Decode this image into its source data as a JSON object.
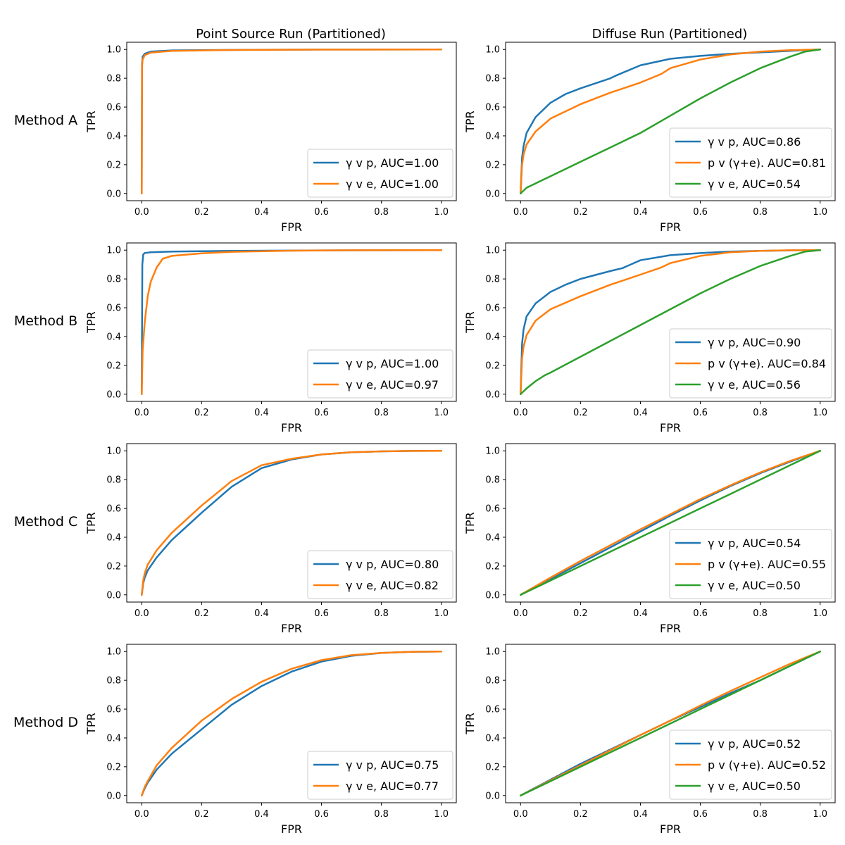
{
  "figure": {
    "column_titles": [
      "Point Source Run (Partitioned)",
      "Diffuse Run (Partitioned)"
    ],
    "row_labels": [
      "Method A",
      "Method B",
      "Method C",
      "Method D"
    ],
    "colors": {
      "blue": "#1f77b4",
      "orange": "#ff7f0e",
      "green": "#2ca02c"
    }
  },
  "chart_data": [
    {
      "type": "line",
      "row": 0,
      "col": 0,
      "xlabel": "FPR",
      "ylabel": "TPR",
      "xlim": [
        0,
        1
      ],
      "ylim": [
        0,
        1
      ],
      "xticks": [
        "0.0",
        "0.2",
        "0.4",
        "0.6",
        "0.8",
        "1.0"
      ],
      "yticks": [
        "0.0",
        "0.2",
        "0.4",
        "0.6",
        "0.8",
        "1.0"
      ],
      "legend": "lower-right",
      "series": [
        {
          "name": "γ v p, AUC=1.00",
          "color": "blue",
          "x": [
            0,
            0.001,
            0.003,
            0.01,
            0.03,
            0.1,
            0.3,
            0.6,
            1.0
          ],
          "y": [
            0,
            0.9,
            0.95,
            0.97,
            0.985,
            0.993,
            0.997,
            0.999,
            1.0
          ]
        },
        {
          "name": "γ v e, AUC=1.00",
          "color": "orange",
          "x": [
            0,
            0.001,
            0.003,
            0.01,
            0.03,
            0.1,
            0.3,
            0.6,
            1.0
          ],
          "y": [
            0,
            0.88,
            0.93,
            0.96,
            0.978,
            0.99,
            0.996,
            0.999,
            1.0
          ]
        }
      ]
    },
    {
      "type": "line",
      "row": 0,
      "col": 1,
      "xlabel": "FPR",
      "ylabel": "TPR",
      "xlim": [
        0,
        1
      ],
      "ylim": [
        0,
        1
      ],
      "xticks": [
        "0.0",
        "0.2",
        "0.4",
        "0.6",
        "0.8",
        "1.0"
      ],
      "yticks": [
        "0.0",
        "0.2",
        "0.4",
        "0.6",
        "0.8",
        "1.0"
      ],
      "legend": "lower-right",
      "series": [
        {
          "name": "γ v p, AUC=0.86",
          "color": "blue",
          "x": [
            0,
            0.005,
            0.01,
            0.02,
            0.05,
            0.1,
            0.15,
            0.2,
            0.3,
            0.32,
            0.4,
            0.5,
            0.6,
            0.7,
            0.8,
            0.9,
            1.0
          ],
          "y": [
            0,
            0.25,
            0.33,
            0.42,
            0.53,
            0.63,
            0.69,
            0.73,
            0.8,
            0.82,
            0.89,
            0.935,
            0.955,
            0.97,
            0.98,
            0.99,
            1.0
          ]
        },
        {
          "name": "p v (γ+e). AUC=0.81",
          "color": "orange",
          "x": [
            0,
            0.005,
            0.01,
            0.02,
            0.05,
            0.1,
            0.2,
            0.3,
            0.4,
            0.47,
            0.5,
            0.6,
            0.7,
            0.8,
            0.9,
            1.0
          ],
          "y": [
            0,
            0.2,
            0.27,
            0.34,
            0.43,
            0.52,
            0.62,
            0.7,
            0.77,
            0.83,
            0.87,
            0.93,
            0.965,
            0.985,
            0.995,
            1.0
          ]
        },
        {
          "name": "γ v e, AUC=0.54",
          "color": "green",
          "x": [
            0,
            0.02,
            0.05,
            0.1,
            0.2,
            0.3,
            0.4,
            0.5,
            0.6,
            0.7,
            0.8,
            0.9,
            0.95,
            1.0
          ],
          "y": [
            0,
            0.04,
            0.07,
            0.12,
            0.22,
            0.32,
            0.42,
            0.54,
            0.66,
            0.77,
            0.87,
            0.95,
            0.985,
            1.0
          ]
        }
      ]
    },
    {
      "type": "line",
      "row": 1,
      "col": 0,
      "xlabel": "FPR",
      "ylabel": "TPR",
      "xlim": [
        0,
        1
      ],
      "ylim": [
        0,
        1
      ],
      "xticks": [
        "0.0",
        "0.2",
        "0.4",
        "0.6",
        "0.8",
        "1.0"
      ],
      "yticks": [
        "0.0",
        "0.2",
        "0.4",
        "0.6",
        "0.8",
        "1.0"
      ],
      "legend": "lower-right",
      "series": [
        {
          "name": "γ v p, AUC=1.00",
          "color": "blue",
          "x": [
            0,
            0.002,
            0.005,
            0.01,
            0.03,
            0.1,
            0.3,
            0.6,
            1.0
          ],
          "y": [
            0,
            0.9,
            0.97,
            0.98,
            0.985,
            0.99,
            0.995,
            0.998,
            1.0
          ]
        },
        {
          "name": "γ v e, AUC=0.97",
          "color": "orange",
          "x": [
            0,
            0.003,
            0.01,
            0.02,
            0.03,
            0.05,
            0.07,
            0.1,
            0.2,
            0.3,
            0.5,
            0.7,
            1.0
          ],
          "y": [
            0,
            0.3,
            0.5,
            0.68,
            0.78,
            0.88,
            0.94,
            0.96,
            0.978,
            0.988,
            0.996,
            0.999,
            1.0
          ]
        }
      ]
    },
    {
      "type": "line",
      "row": 1,
      "col": 1,
      "xlabel": "FPR",
      "ylabel": "TPR",
      "xlim": [
        0,
        1
      ],
      "ylim": [
        0,
        1
      ],
      "xticks": [
        "0.0",
        "0.2",
        "0.4",
        "0.6",
        "0.8",
        "1.0"
      ],
      "yticks": [
        "0.0",
        "0.2",
        "0.4",
        "0.6",
        "0.8",
        "1.0"
      ],
      "legend": "lower-right",
      "series": [
        {
          "name": "γ v p, AUC=0.90",
          "color": "blue",
          "x": [
            0,
            0.005,
            0.01,
            0.02,
            0.05,
            0.1,
            0.15,
            0.2,
            0.3,
            0.34,
            0.4,
            0.5,
            0.6,
            0.7,
            0.8,
            0.9,
            1.0
          ],
          "y": [
            0,
            0.35,
            0.45,
            0.54,
            0.63,
            0.71,
            0.76,
            0.8,
            0.855,
            0.875,
            0.93,
            0.965,
            0.98,
            0.99,
            0.995,
            0.998,
            1.0
          ]
        },
        {
          "name": "p v (γ+e). AUC=0.84",
          "color": "orange",
          "x": [
            0,
            0.005,
            0.01,
            0.02,
            0.05,
            0.1,
            0.2,
            0.3,
            0.4,
            0.47,
            0.5,
            0.6,
            0.7,
            0.8,
            0.9,
            1.0
          ],
          "y": [
            0,
            0.25,
            0.33,
            0.41,
            0.51,
            0.59,
            0.68,
            0.76,
            0.83,
            0.88,
            0.91,
            0.96,
            0.985,
            0.995,
            0.999,
            1.0
          ]
        },
        {
          "name": "γ v e, AUC=0.56",
          "color": "green",
          "x": [
            0,
            0.02,
            0.05,
            0.08,
            0.1,
            0.2,
            0.3,
            0.4,
            0.5,
            0.6,
            0.7,
            0.8,
            0.9,
            0.95,
            1.0
          ],
          "y": [
            0,
            0.04,
            0.09,
            0.13,
            0.15,
            0.26,
            0.37,
            0.48,
            0.59,
            0.7,
            0.8,
            0.89,
            0.96,
            0.99,
            1.0
          ]
        }
      ]
    },
    {
      "type": "line",
      "row": 2,
      "col": 0,
      "xlabel": "FPR",
      "ylabel": "TPR",
      "xlim": [
        0,
        1
      ],
      "ylim": [
        0,
        1
      ],
      "xticks": [
        "0.0",
        "0.2",
        "0.4",
        "0.6",
        "0.8",
        "1.0"
      ],
      "yticks": [
        "0.0",
        "0.2",
        "0.4",
        "0.6",
        "0.8",
        "1.0"
      ],
      "legend": "lower-right",
      "series": [
        {
          "name": "γ v p, AUC=0.80",
          "color": "blue",
          "x": [
            0,
            0.005,
            0.01,
            0.02,
            0.05,
            0.1,
            0.2,
            0.3,
            0.4,
            0.5,
            0.6,
            0.7,
            0.8,
            0.9,
            1.0
          ],
          "y": [
            0,
            0.08,
            0.12,
            0.17,
            0.26,
            0.38,
            0.57,
            0.75,
            0.88,
            0.94,
            0.975,
            0.99,
            0.996,
            0.999,
            1.0
          ]
        },
        {
          "name": "γ v e, AUC=0.82",
          "color": "orange",
          "x": [
            0,
            0.005,
            0.01,
            0.02,
            0.05,
            0.1,
            0.2,
            0.3,
            0.4,
            0.5,
            0.6,
            0.7,
            0.8,
            0.9,
            1.0
          ],
          "y": [
            0,
            0.1,
            0.15,
            0.21,
            0.31,
            0.43,
            0.62,
            0.79,
            0.9,
            0.945,
            0.975,
            0.99,
            0.996,
            0.999,
            1.0
          ]
        }
      ]
    },
    {
      "type": "line",
      "row": 2,
      "col": 1,
      "xlabel": "FPR",
      "ylabel": "TPR",
      "xlim": [
        0,
        1
      ],
      "ylim": [
        0,
        1
      ],
      "xticks": [
        "0.0",
        "0.2",
        "0.4",
        "0.6",
        "0.8",
        "1.0"
      ],
      "yticks": [
        "0.0",
        "0.2",
        "0.4",
        "0.6",
        "0.8",
        "1.0"
      ],
      "legend": "lower-right",
      "series": [
        {
          "name": "γ v p, AUC=0.54",
          "color": "blue",
          "x": [
            0,
            0.1,
            0.2,
            0.3,
            0.4,
            0.5,
            0.6,
            0.7,
            0.8,
            0.9,
            1.0
          ],
          "y": [
            0,
            0.11,
            0.22,
            0.33,
            0.44,
            0.55,
            0.655,
            0.755,
            0.845,
            0.925,
            1.0
          ]
        },
        {
          "name": "p v (γ+e). AUC=0.55",
          "color": "orange",
          "x": [
            0,
            0.1,
            0.2,
            0.3,
            0.4,
            0.5,
            0.6,
            0.7,
            0.8,
            0.9,
            1.0
          ],
          "y": [
            0,
            0.12,
            0.235,
            0.345,
            0.455,
            0.56,
            0.665,
            0.76,
            0.85,
            0.93,
            1.0
          ]
        },
        {
          "name": "γ v e, AUC=0.50",
          "color": "green",
          "x": [
            0,
            0.1,
            0.2,
            0.3,
            0.4,
            0.5,
            0.6,
            0.7,
            0.8,
            0.9,
            1.0
          ],
          "y": [
            0,
            0.1,
            0.2,
            0.3,
            0.4,
            0.5,
            0.6,
            0.7,
            0.8,
            0.9,
            1.0
          ]
        }
      ]
    },
    {
      "type": "line",
      "row": 3,
      "col": 0,
      "xlabel": "FPR",
      "ylabel": "TPR",
      "xlim": [
        0,
        1
      ],
      "ylim": [
        0,
        1
      ],
      "xticks": [
        "0.0",
        "0.2",
        "0.4",
        "0.6",
        "0.8",
        "1.0"
      ],
      "yticks": [
        "0.0",
        "0.2",
        "0.4",
        "0.6",
        "0.8",
        "1.0"
      ],
      "legend": "lower-right",
      "series": [
        {
          "name": "γ v p, AUC=0.75",
          "color": "blue",
          "x": [
            0,
            0.01,
            0.02,
            0.05,
            0.1,
            0.2,
            0.3,
            0.4,
            0.5,
            0.6,
            0.7,
            0.8,
            0.9,
            1.0
          ],
          "y": [
            0,
            0.05,
            0.09,
            0.18,
            0.29,
            0.46,
            0.63,
            0.76,
            0.86,
            0.93,
            0.97,
            0.99,
            0.998,
            1.0
          ]
        },
        {
          "name": "γ v e, AUC=0.77",
          "color": "orange",
          "x": [
            0,
            0.01,
            0.02,
            0.05,
            0.1,
            0.2,
            0.3,
            0.4,
            0.5,
            0.6,
            0.7,
            0.8,
            0.9,
            1.0
          ],
          "y": [
            0,
            0.06,
            0.1,
            0.21,
            0.33,
            0.52,
            0.67,
            0.79,
            0.88,
            0.94,
            0.975,
            0.99,
            0.998,
            1.0
          ]
        }
      ]
    },
    {
      "type": "line",
      "row": 3,
      "col": 1,
      "xlabel": "FPR",
      "ylabel": "TPR",
      "xlim": [
        0,
        1
      ],
      "ylim": [
        0,
        1
      ],
      "xticks": [
        "0.0",
        "0.2",
        "0.4",
        "0.6",
        "0.8",
        "1.0"
      ],
      "yticks": [
        "0.0",
        "0.2",
        "0.4",
        "0.6",
        "0.8",
        "1.0"
      ],
      "legend": "lower-right",
      "series": [
        {
          "name": "γ v p, AUC=0.52",
          "color": "blue",
          "x": [
            0,
            0.1,
            0.2,
            0.3,
            0.4,
            0.5,
            0.6,
            0.7,
            0.8,
            0.9,
            1.0
          ],
          "y": [
            0,
            0.11,
            0.22,
            0.32,
            0.42,
            0.52,
            0.615,
            0.71,
            0.8,
            0.9,
            1.0
          ]
        },
        {
          "name": "p v (γ+e). AUC=0.52",
          "color": "orange",
          "x": [
            0,
            0.1,
            0.2,
            0.3,
            0.4,
            0.5,
            0.6,
            0.7,
            0.8,
            0.9,
            1.0
          ],
          "y": [
            0,
            0.105,
            0.21,
            0.315,
            0.42,
            0.52,
            0.625,
            0.725,
            0.82,
            0.915,
            1.0
          ]
        },
        {
          "name": "γ v e, AUC=0.50",
          "color": "green",
          "x": [
            0,
            0.1,
            0.2,
            0.3,
            0.4,
            0.5,
            0.6,
            0.7,
            0.8,
            0.9,
            1.0
          ],
          "y": [
            0,
            0.1,
            0.2,
            0.3,
            0.4,
            0.5,
            0.6,
            0.7,
            0.8,
            0.9,
            1.0
          ]
        }
      ]
    }
  ]
}
